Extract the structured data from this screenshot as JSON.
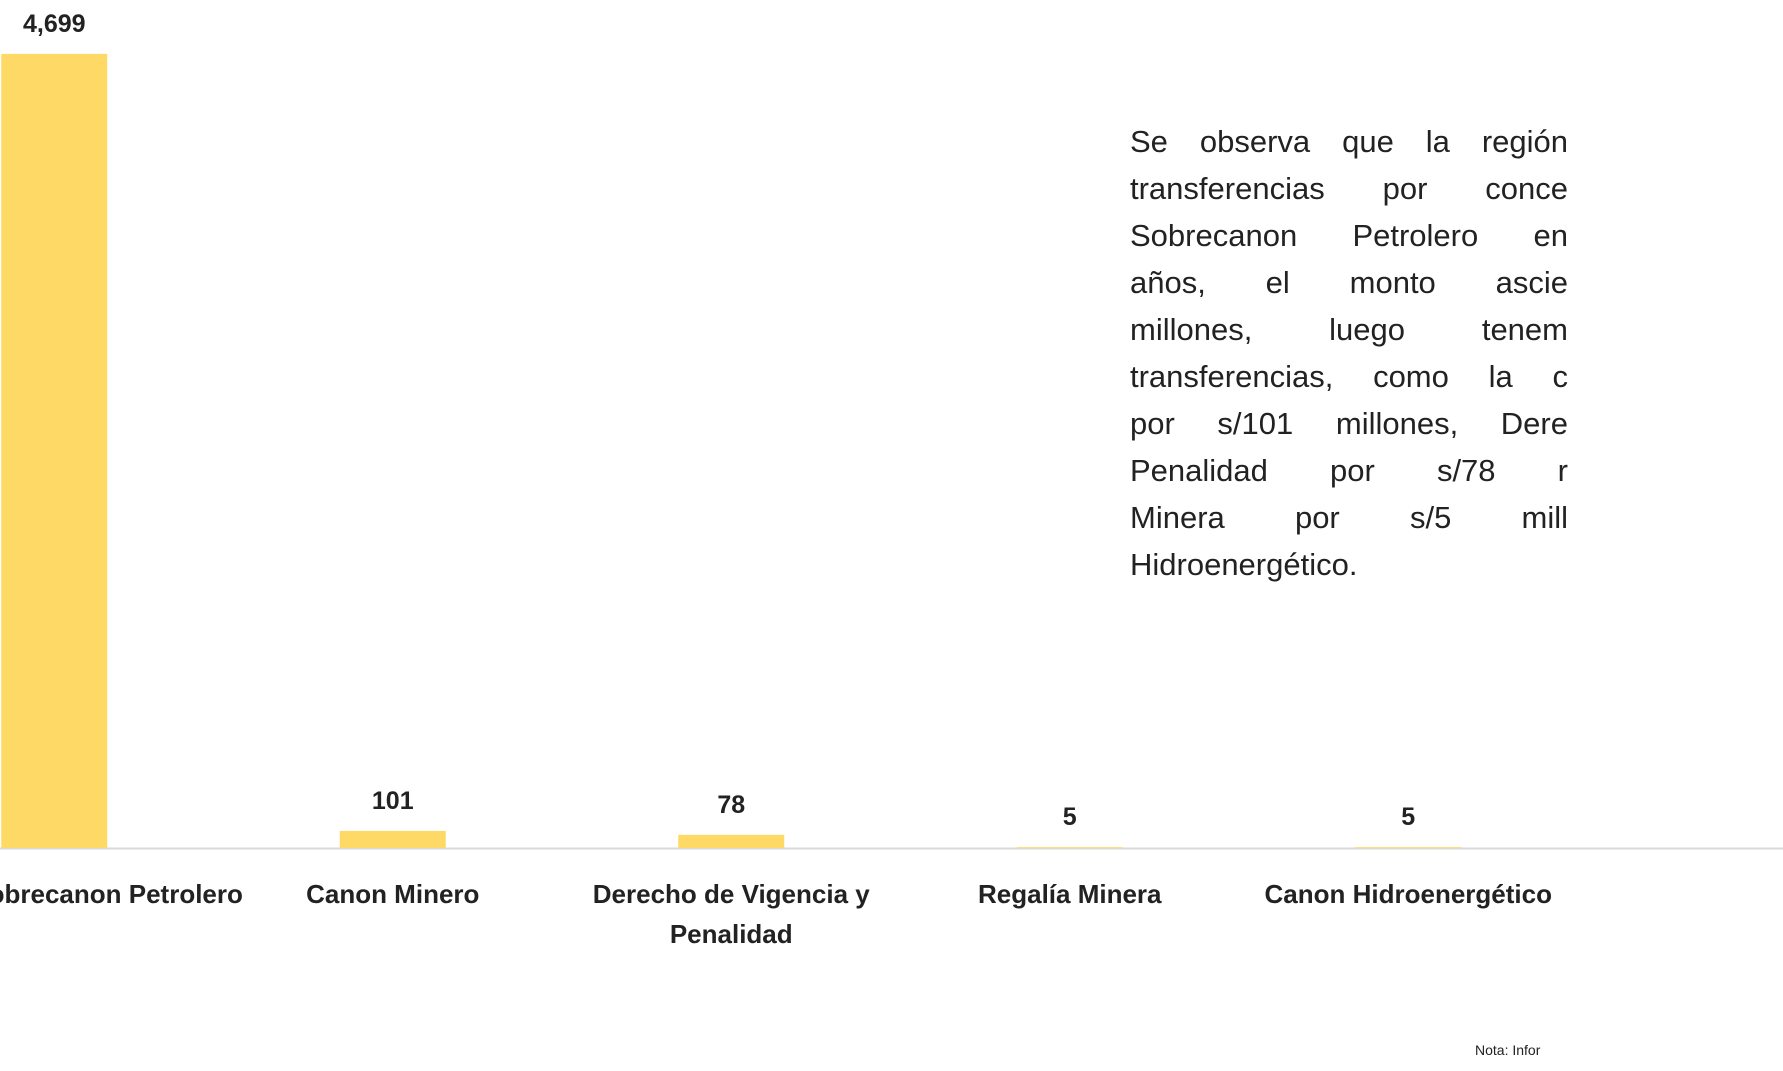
{
  "chart_data": {
    "type": "bar",
    "categories": [
      "y Sobrecanon Petrolero",
      "Canon Minero",
      "Derecho de Vigencia y Penalidad",
      "Regalía Minera",
      "Canon Hidroenergético"
    ],
    "values": [
      4699,
      101,
      78,
      5,
      5
    ],
    "value_labels": [
      "4,699",
      "101",
      "78",
      "5",
      "5"
    ],
    "color": "#ffd966",
    "ylim": [
      0,
      5000
    ]
  },
  "text": {
    "lines": [
      "Se observa que la región",
      "transferencias por conce",
      "Sobrecanon Petrolero en",
      "años, el monto ascie",
      "millones, luego tenem",
      "transferencias, como la c",
      "por s/101 millones, Dere",
      "Penalidad por s/78 r",
      "Minera por s/5 mill",
      "Hidroenergético."
    ],
    "note": "Nota: Infor"
  }
}
